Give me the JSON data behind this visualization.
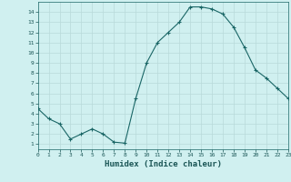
{
  "x": [
    0,
    1,
    2,
    3,
    4,
    5,
    6,
    7,
    8,
    9,
    10,
    11,
    12,
    13,
    14,
    15,
    16,
    17,
    18,
    19,
    20,
    21,
    22,
    23
  ],
  "y": [
    4.5,
    3.5,
    3.0,
    1.5,
    2.0,
    2.5,
    2.0,
    1.2,
    1.1,
    5.5,
    9.0,
    11.0,
    12.0,
    13.0,
    14.5,
    14.5,
    14.3,
    13.8,
    12.5,
    10.5,
    8.3,
    7.5,
    6.5,
    5.5
  ],
  "xlabel": "Humidex (Indice chaleur)",
  "xlim": [
    0,
    23
  ],
  "ylim": [
    0.5,
    15.0
  ],
  "bg_color": "#d0f0f0",
  "line_color": "#1a6666",
  "grid_color": "#b8dada",
  "text_color": "#1a5555",
  "ytick_values": [
    1,
    2,
    3,
    4,
    5,
    6,
    7,
    8,
    9,
    10,
    11,
    12,
    13,
    14
  ],
  "xtick_labels": [
    "0",
    "1",
    "2",
    "3",
    "4",
    "5",
    "6",
    "7",
    "8",
    "9",
    "10",
    "11",
    "12",
    "13",
    "14",
    "15",
    "16",
    "17",
    "18",
    "19",
    "20",
    "21",
    "22",
    "23"
  ]
}
